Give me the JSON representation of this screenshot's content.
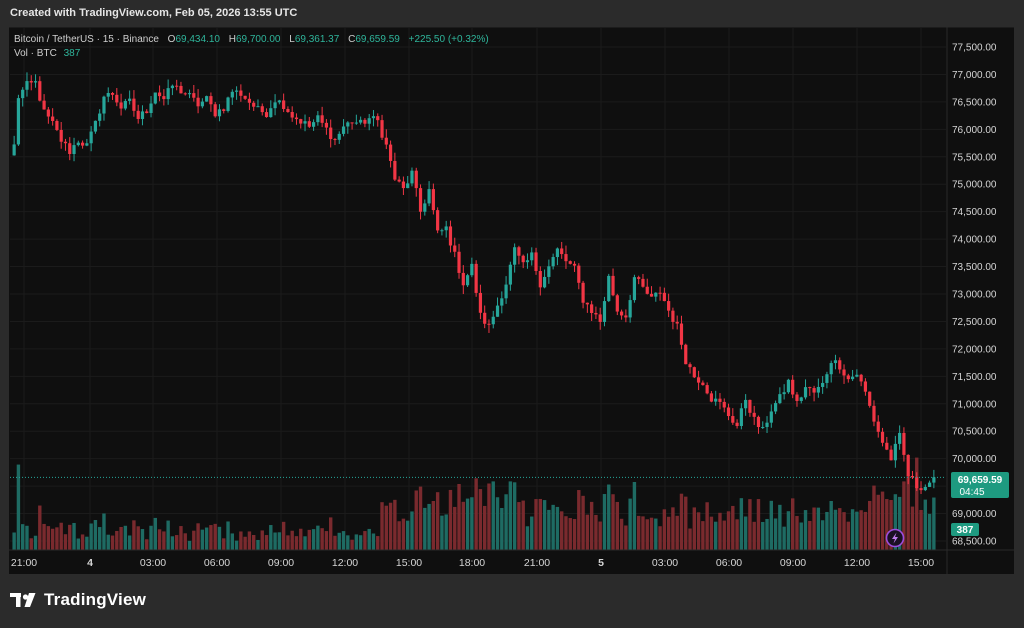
{
  "header": {
    "watermark": "Created with TradingView.com, Feb 05, 2026 13:55 UTC"
  },
  "legend": {
    "symbol": "Bitcoin / TetherUS · 15 · Binance",
    "open_label": "O",
    "open_value": "69,434.10",
    "high_label": "H",
    "high_value": "69,700.00",
    "low_label": "L",
    "low_value": "69,361.37",
    "close_label": "C",
    "close_value": "69,659.59",
    "change": "+225.50 (+0.32%)",
    "vol_label": "Vol · BTC",
    "vol_value": "387"
  },
  "price_tag": {
    "price": "69,659.59",
    "countdown": "04:45"
  },
  "volume_tag": "387",
  "brand": {
    "name": "TradingView"
  },
  "colors": {
    "up": "#26a69a",
    "down": "#f23645",
    "up_vol": "#1e6b63",
    "down_vol": "#7a2a2e",
    "grid": "#1b1b1b",
    "tag": "#1e9a80"
  },
  "chart_data": {
    "type": "candlestick",
    "interval": "15",
    "ylim": [
      68400,
      77800
    ],
    "y_ticks": [
      "68,500.00",
      "69,000.00",
      "69,500.00",
      "70,000.00",
      "70,500.00",
      "71,000.00",
      "71,500.00",
      "72,000.00",
      "72,500.00",
      "73,000.00",
      "73,500.00",
      "74,000.00",
      "74,500.00",
      "75,000.00",
      "75,500.00",
      "76,000.00",
      "76,500.00",
      "77,000.00",
      "77,500.00"
    ],
    "x_ticks": [
      "21:00",
      "4",
      "03:00",
      "06:00",
      "09:00",
      "12:00",
      "15:00",
      "18:00",
      "21:00",
      "5",
      "03:00",
      "06:00",
      "09:00",
      "12:00",
      "15:00"
    ],
    "anchors": [
      [
        0,
        75700
      ],
      [
        1,
        76600
      ],
      [
        3,
        76800
      ],
      [
        5,
        76850
      ],
      [
        7,
        76300
      ],
      [
        9,
        76100
      ],
      [
        11,
        75800
      ],
      [
        13,
        75600
      ],
      [
        15,
        75800
      ],
      [
        17,
        75700
      ],
      [
        19,
        76100
      ],
      [
        21,
        76600
      ],
      [
        23,
        76650
      ],
      [
        25,
        76400
      ],
      [
        27,
        76500
      ],
      [
        29,
        76200
      ],
      [
        31,
        76350
      ],
      [
        33,
        76700
      ],
      [
        35,
        76550
      ],
      [
        37,
        76800
      ],
      [
        39,
        76700
      ],
      [
        41,
        76600
      ],
      [
        43,
        76450
      ],
      [
        45,
        76550
      ],
      [
        47,
        76300
      ],
      [
        49,
        76400
      ],
      [
        51,
        76700
      ],
      [
        53,
        76650
      ],
      [
        55,
        76500
      ],
      [
        57,
        76350
      ],
      [
        59,
        76300
      ],
      [
        61,
        76550
      ],
      [
        63,
        76450
      ],
      [
        65,
        76250
      ],
      [
        67,
        76150
      ],
      [
        69,
        76050
      ],
      [
        71,
        76200
      ],
      [
        73,
        76000
      ],
      [
        75,
        75800
      ],
      [
        77,
        76050
      ],
      [
        79,
        76150
      ],
      [
        81,
        76100
      ],
      [
        83,
        76200
      ],
      [
        85,
        76150
      ],
      [
        87,
        75700
      ],
      [
        89,
        75100
      ],
      [
        91,
        74900
      ],
      [
        93,
        75200
      ],
      [
        95,
        74500
      ],
      [
        97,
        74900
      ],
      [
        99,
        74100
      ],
      [
        101,
        74200
      ],
      [
        103,
        73700
      ],
      [
        105,
        73200
      ],
      [
        107,
        73500
      ],
      [
        109,
        72600
      ],
      [
        111,
        72400
      ],
      [
        113,
        72800
      ],
      [
        115,
        73200
      ],
      [
        117,
        73800
      ],
      [
        119,
        73500
      ],
      [
        121,
        73700
      ],
      [
        123,
        73200
      ],
      [
        125,
        73500
      ],
      [
        127,
        73800
      ],
      [
        129,
        73600
      ],
      [
        131,
        73450
      ],
      [
        133,
        72900
      ],
      [
        135,
        72700
      ],
      [
        137,
        72500
      ],
      [
        139,
        73300
      ],
      [
        141,
        72700
      ],
      [
        143,
        72600
      ],
      [
        145,
        73300
      ],
      [
        147,
        73100
      ],
      [
        149,
        72900
      ],
      [
        151,
        73050
      ],
      [
        153,
        72700
      ],
      [
        155,
        72400
      ],
      [
        157,
        71800
      ],
      [
        159,
        71500
      ],
      [
        161,
        71400
      ],
      [
        163,
        71100
      ],
      [
        165,
        71000
      ],
      [
        167,
        70800
      ],
      [
        169,
        70600
      ],
      [
        171,
        71100
      ],
      [
        173,
        70700
      ],
      [
        175,
        70500
      ],
      [
        177,
        70900
      ],
      [
        179,
        71100
      ],
      [
        181,
        71400
      ],
      [
        183,
        71000
      ],
      [
        185,
        71300
      ],
      [
        187,
        71200
      ],
      [
        189,
        71350
      ],
      [
        191,
        71800
      ],
      [
        193,
        71700
      ],
      [
        195,
        71450
      ],
      [
        197,
        71550
      ],
      [
        199,
        71200
      ],
      [
        201,
        70700
      ],
      [
        203,
        70300
      ],
      [
        205,
        70000
      ],
      [
        207,
        70400
      ],
      [
        209,
        69700
      ],
      [
        211,
        69500
      ],
      [
        213,
        69500
      ],
      [
        215,
        69660
      ]
    ],
    "volume": {
      "max": 120,
      "n": 216
    }
  }
}
